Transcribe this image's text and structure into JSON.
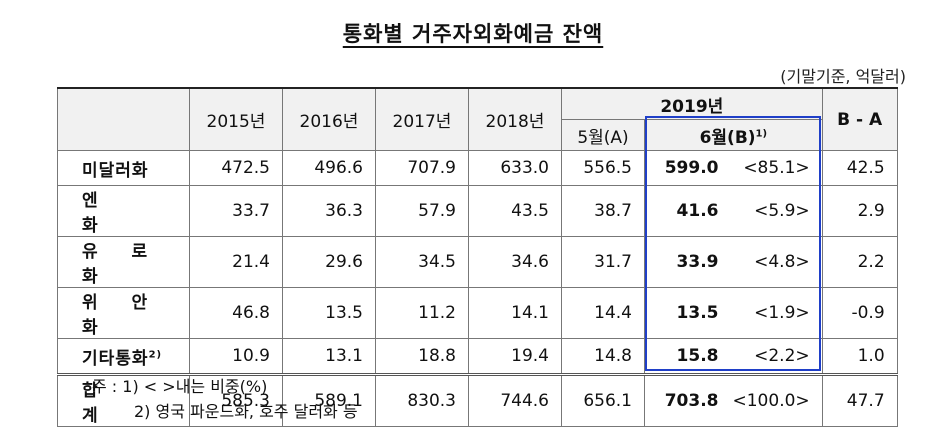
{
  "title": "통화별 거주자외화예금 잔액",
  "unit_note": "(기말기준, 억달러)",
  "header": {
    "years": [
      "2015년",
      "2016년",
      "2017년",
      "2018년"
    ],
    "group_2019": "2019년",
    "may": "5월(A)",
    "june": "6월(B)",
    "june_sup": "1)",
    "diff": "B - A"
  },
  "rows": [
    {
      "label": "미달러화",
      "sup": "",
      "y2015": "472.5",
      "y2016": "496.6",
      "y2017": "707.9",
      "y2018": "633.0",
      "may": "556.5",
      "june": "599.0",
      "share": "<85.1>",
      "diff": "42.5"
    },
    {
      "label": "엔 화",
      "sup": "",
      "y2015": "33.7",
      "y2016": "36.3",
      "y2017": "57.9",
      "y2018": "43.5",
      "may": "38.7",
      "june": "41.6",
      "share": "<5.9>",
      "diff": "2.9"
    },
    {
      "label": "유 로 화",
      "sup": "",
      "y2015": "21.4",
      "y2016": "29.6",
      "y2017": "34.5",
      "y2018": "34.6",
      "may": "31.7",
      "june": "33.9",
      "share": "<4.8>",
      "diff": "2.2"
    },
    {
      "label": "위 안 화",
      "sup": "",
      "y2015": "46.8",
      "y2016": "13.5",
      "y2017": "11.2",
      "y2018": "14.1",
      "may": "14.4",
      "june": "13.5",
      "share": "<1.9>",
      "diff": "-0.9"
    },
    {
      "label": "기타통화",
      "sup": "2)",
      "y2015": "10.9",
      "y2016": "13.1",
      "y2017": "18.8",
      "y2018": "19.4",
      "may": "14.8",
      "june": "15.8",
      "share": "<2.2>",
      "diff": "1.0"
    }
  ],
  "total": {
    "label": "합 계",
    "y2015": "585.3",
    "y2016": "589.1",
    "y2017": "830.3",
    "y2018": "744.6",
    "may": "656.1",
    "june": "703.8",
    "share": "<100.0>",
    "diff": "47.7"
  },
  "notes": {
    "note1": "주 : 1) <   >내는 비중(%)",
    "note2": "2) 영국 파운드화, 호주 달러화 등"
  }
}
